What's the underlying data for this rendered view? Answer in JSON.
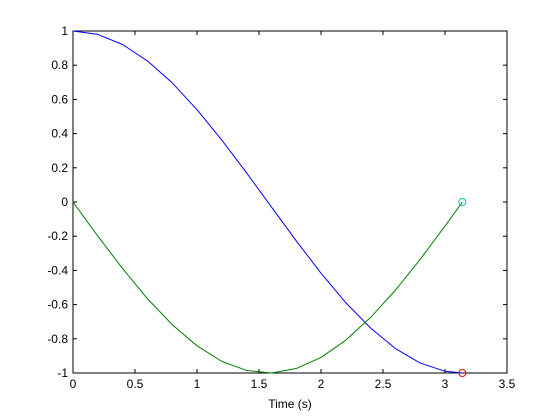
{
  "chart_data": {
    "type": "line",
    "title": "",
    "xlabel": "Time (s)",
    "ylabel": "",
    "xlim": [
      0,
      3.5
    ],
    "ylim": [
      -1,
      1
    ],
    "grid": false,
    "legend": "none",
    "x_ticks": [
      0,
      0.5,
      1,
      1.5,
      2,
      2.5,
      3,
      3.5
    ],
    "x_tick_labels": [
      "0",
      "0.5",
      "1",
      "1.5",
      "2",
      "2.5",
      "3",
      "3.5"
    ],
    "y_ticks": [
      1,
      0.8,
      0.6,
      0.4,
      0.2,
      0,
      -0.2,
      -0.4,
      -0.6,
      -0.8,
      -1
    ],
    "y_tick_labels": [
      "1",
      "0.8",
      "0.6",
      "0.4",
      "0.2",
      "0",
      "-0.2",
      "-0.4",
      "-0.6",
      "-0.8",
      "-1"
    ],
    "series": [
      {
        "color": "#0000ff",
        "x": [
          0,
          0.2,
          0.4,
          0.6,
          0.8,
          1.0,
          1.2,
          1.4,
          1.6,
          1.8,
          2.0,
          2.2,
          2.4,
          2.6,
          2.8,
          3.0,
          3.14
        ],
        "y": [
          1,
          0.98,
          0.921,
          0.825,
          0.697,
          0.54,
          0.362,
          0.17,
          -0.029,
          -0.227,
          -0.416,
          -0.589,
          -0.737,
          -0.857,
          -0.942,
          -0.99,
          -1
        ]
      },
      {
        "color": "#008000",
        "x": [
          0,
          0.2,
          0.4,
          0.6,
          0.8,
          1.0,
          1.2,
          1.4,
          1.6,
          1.8,
          2.0,
          2.2,
          2.4,
          2.6,
          2.8,
          3.0,
          3.14
        ],
        "y": [
          0,
          -0.199,
          -0.389,
          -0.565,
          -0.717,
          -0.841,
          -0.932,
          -0.985,
          -1,
          -0.974,
          -0.909,
          -0.808,
          -0.675,
          -0.516,
          -0.335,
          -0.141,
          0
        ]
      }
    ],
    "markers": [
      {
        "x": 3.14,
        "y": 0,
        "color": "#00bfbf",
        "shape": "circle"
      },
      {
        "x": 3.14,
        "y": -1,
        "color": "#ff0000",
        "shape": "circle"
      }
    ]
  }
}
